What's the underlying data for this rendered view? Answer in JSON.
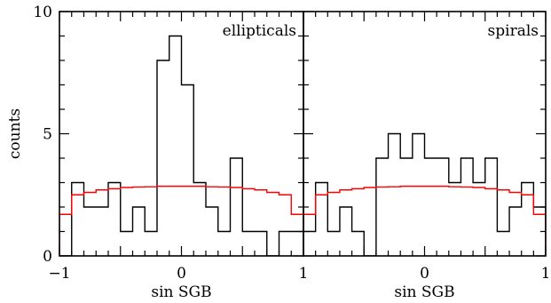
{
  "chart_data": [
    {
      "type": "histogram",
      "label": "ellipticals",
      "xlabel": "sin SGB",
      "ylabel": "counts",
      "xlim": [
        -1,
        1
      ],
      "ylim": [
        0,
        10
      ],
      "bin_width": 0.1,
      "xticks": [
        "−1",
        "0",
        "1"
      ],
      "yticks": [
        "0",
        "5",
        "10"
      ],
      "series": [
        {
          "color": "#000000",
          "bin_edges": [
            -1.0,
            -0.9,
            -0.8,
            -0.7,
            -0.6,
            -0.5,
            -0.4,
            -0.3,
            -0.2,
            -0.1,
            0.0,
            0.1,
            0.2,
            0.3,
            0.4,
            0.5,
            0.6,
            0.7,
            0.8,
            0.9,
            1.0
          ],
          "counts": [
            0,
            3,
            2,
            2,
            3,
            1,
            2,
            1,
            8,
            9,
            7,
            3,
            2,
            1,
            4,
            1,
            1,
            0,
            1,
            1
          ]
        },
        {
          "color": "#ff0000",
          "bin_edges": [
            -1.0,
            -0.9,
            -0.8,
            -0.7,
            -0.6,
            -0.5,
            -0.4,
            -0.3,
            -0.2,
            -0.1,
            0.0,
            0.1,
            0.2,
            0.3,
            0.4,
            0.5,
            0.6,
            0.7,
            0.8,
            0.9,
            1.0
          ],
          "counts": [
            1.7,
            2.5,
            2.6,
            2.7,
            2.75,
            2.8,
            2.82,
            2.83,
            2.85,
            2.85,
            2.85,
            2.85,
            2.83,
            2.82,
            2.8,
            2.75,
            2.7,
            2.6,
            2.5,
            1.7
          ]
        }
      ]
    },
    {
      "type": "histogram",
      "label": "spirals",
      "xlabel": "sin SGB",
      "ylabel": "",
      "xlim": [
        -1,
        1
      ],
      "ylim": [
        0,
        10
      ],
      "bin_width": 0.1,
      "xticks": [
        "",
        "0",
        "1"
      ],
      "yticks": [],
      "series": [
        {
          "color": "#000000",
          "bin_edges": [
            -1.0,
            -0.9,
            -0.8,
            -0.7,
            -0.6,
            -0.5,
            -0.4,
            -0.3,
            -0.2,
            -0.1,
            0.0,
            0.1,
            0.2,
            0.3,
            0.4,
            0.5,
            0.6,
            0.7,
            0.8,
            0.9,
            1.0
          ],
          "counts": [
            1,
            3,
            1,
            2,
            1,
            0,
            4,
            5,
            4,
            5,
            4,
            4,
            3,
            4,
            3,
            4,
            1,
            2,
            3,
            2
          ]
        },
        {
          "color": "#ff0000",
          "bin_edges": [
            -1.0,
            -0.9,
            -0.8,
            -0.7,
            -0.6,
            -0.5,
            -0.4,
            -0.3,
            -0.2,
            -0.1,
            0.0,
            0.1,
            0.2,
            0.3,
            0.4,
            0.5,
            0.6,
            0.7,
            0.8,
            0.9,
            1.0
          ],
          "counts": [
            1.7,
            2.5,
            2.6,
            2.7,
            2.75,
            2.8,
            2.82,
            2.83,
            2.85,
            2.85,
            2.85,
            2.85,
            2.83,
            2.82,
            2.8,
            2.75,
            2.7,
            2.6,
            2.5,
            1.7
          ]
        }
      ]
    }
  ]
}
